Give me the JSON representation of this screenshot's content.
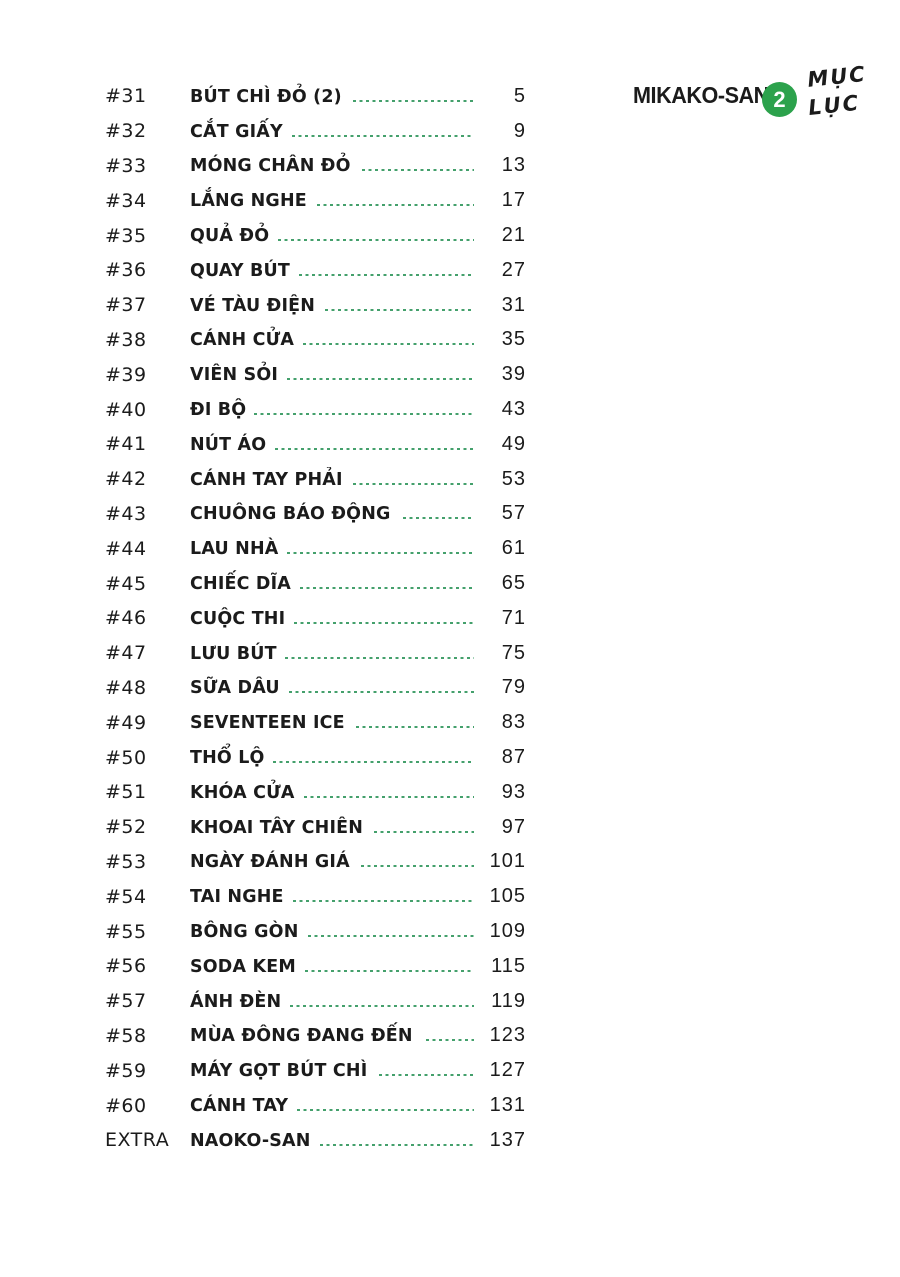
{
  "page": {
    "background": "#ffffff",
    "text_color": "#1b1b1b",
    "leader_color": "#44a06c"
  },
  "header": {
    "series_title": "MIKAKO-SAN",
    "volume_number": "2",
    "volume_badge_color": "#2ca24c",
    "toc_label_line1": "MỤC",
    "toc_label_line2": "LỤC"
  },
  "toc": {
    "entries": [
      {
        "chapter": "#31",
        "title": "BÚT CHÌ ĐỎ (2)",
        "page": "5"
      },
      {
        "chapter": "#32",
        "title": "CẮT GIẤY",
        "page": "9"
      },
      {
        "chapter": "#33",
        "title": "MÓNG CHÂN ĐỎ",
        "page": "13"
      },
      {
        "chapter": "#34",
        "title": "LẮNG NGHE",
        "page": "17"
      },
      {
        "chapter": "#35",
        "title": "QUẢ ĐỎ",
        "page": "21"
      },
      {
        "chapter": "#36",
        "title": "QUAY BÚT",
        "page": "27"
      },
      {
        "chapter": "#37",
        "title": "VÉ TÀU ĐIỆN",
        "page": "31"
      },
      {
        "chapter": "#38",
        "title": "CÁNH CỬA",
        "page": "35"
      },
      {
        "chapter": "#39",
        "title": "VIÊN SỎI",
        "page": "39"
      },
      {
        "chapter": "#40",
        "title": "ĐI BỘ",
        "page": "43"
      },
      {
        "chapter": "#41",
        "title": "NÚT ÁO",
        "page": "49"
      },
      {
        "chapter": "#42",
        "title": "CÁNH TAY PHẢI",
        "page": "53"
      },
      {
        "chapter": "#43",
        "title": "CHUÔNG BÁO ĐỘNG",
        "page": "57"
      },
      {
        "chapter": "#44",
        "title": "LAU NHÀ",
        "page": "61"
      },
      {
        "chapter": "#45",
        "title": "CHIẾC DĨA",
        "page": "65"
      },
      {
        "chapter": "#46",
        "title": "CUỘC THI",
        "page": "71"
      },
      {
        "chapter": "#47",
        "title": "LƯU BÚT",
        "page": "75"
      },
      {
        "chapter": "#48",
        "title": "SỮA DÂU",
        "page": "79"
      },
      {
        "chapter": "#49",
        "title": "SEVENTEEN ICE",
        "page": "83"
      },
      {
        "chapter": "#50",
        "title": "THỔ LỘ",
        "page": "87"
      },
      {
        "chapter": "#51",
        "title": "KHÓA CỬA",
        "page": "93"
      },
      {
        "chapter": "#52",
        "title": "KHOAI TÂY CHIÊN",
        "page": "97"
      },
      {
        "chapter": "#53",
        "title": "NGÀY ĐÁNH GIÁ",
        "page": "101"
      },
      {
        "chapter": "#54",
        "title": "TAI NGHE",
        "page": "105"
      },
      {
        "chapter": "#55",
        "title": "BÔNG GÒN",
        "page": "109"
      },
      {
        "chapter": "#56",
        "title": "SODA KEM",
        "page": "115"
      },
      {
        "chapter": "#57",
        "title": "ÁNH ĐÈN",
        "page": "119"
      },
      {
        "chapter": "#58",
        "title": "MÙA ĐÔNG ĐANG ĐẾN",
        "page": "123"
      },
      {
        "chapter": "#59",
        "title": "MÁY GỌT BÚT CHÌ",
        "page": "127"
      },
      {
        "chapter": "#60",
        "title": "CÁNH TAY",
        "page": "131"
      },
      {
        "chapter": "EXTRA",
        "title": "NAOKO-SAN",
        "page": "137"
      }
    ]
  }
}
